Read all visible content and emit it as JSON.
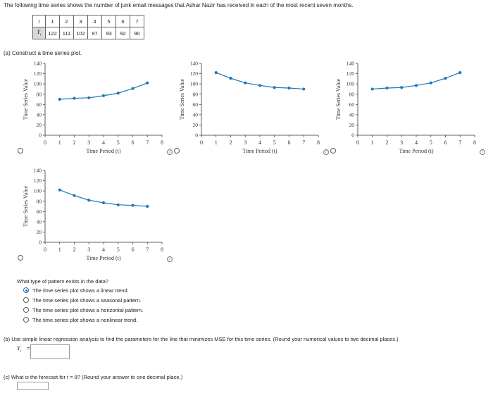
{
  "intro": "The following time series shows the number of junk email messages that Ashar Nazir has received in each of the most recent seven months.",
  "table": {
    "t_label": "t",
    "y_label": "Y",
    "y_sub": "t",
    "t": [
      "1",
      "2",
      "3",
      "4",
      "5",
      "6",
      "7"
    ],
    "y": [
      "122",
      "111",
      "102",
      "97",
      "93",
      "92",
      "90"
    ]
  },
  "part_a": {
    "prompt": "(a)  Construct a time series plot.",
    "question": "What type of pattern exists in the data?",
    "options": [
      "The time series plot shows a linear trend.",
      "The time series plot shows a seasonal pattern.",
      "The time series plot shows a horizontal pattern.",
      "The time series plot shows a nonlinear trend."
    ],
    "selected_index": 0
  },
  "part_b": {
    "prompt": "(b)  Use simple linear regression analysis to find the parameters for the line that minimizes MSE for this time series. (Round your numerical values to two decimal places.)",
    "lhs": "Y",
    "lhs_sub": "t",
    "equals": "=",
    "value": ""
  },
  "part_c": {
    "prompt": "(c)  What is the forecast for t = 8? (Round your answer to one decimal place.)",
    "value": ""
  },
  "info_symbol": "i",
  "chart_data": [
    {
      "type": "line",
      "xlabel": "Time Period (t)",
      "ylabel": "Time Series Value",
      "xlim": [
        0,
        8
      ],
      "ylim": [
        0,
        140
      ],
      "x": [
        1,
        2,
        3,
        4,
        5,
        6,
        7
      ],
      "y": [
        70,
        72,
        73,
        77,
        82,
        91,
        102
      ],
      "xticks": [
        "0",
        "1",
        "2",
        "3",
        "4",
        "5",
        "6",
        "7",
        "8"
      ],
      "yticks": [
        "0",
        "20",
        "40",
        "60",
        "80",
        "100",
        "120",
        "140"
      ]
    },
    {
      "type": "line",
      "xlabel": "Time Period (t)",
      "ylabel": "Time Series Value",
      "xlim": [
        0,
        8
      ],
      "ylim": [
        0,
        140
      ],
      "x": [
        1,
        2,
        3,
        4,
        5,
        6,
        7
      ],
      "y": [
        122,
        111,
        102,
        97,
        93,
        92,
        90
      ],
      "xticks": [
        "0",
        "1",
        "2",
        "3",
        "4",
        "5",
        "6",
        "7",
        "8"
      ],
      "yticks": [
        "0",
        "20",
        "40",
        "60",
        "80",
        "100",
        "120",
        "140"
      ]
    },
    {
      "type": "line",
      "xlabel": "Time Period (t)",
      "ylabel": "Time Series Value",
      "xlim": [
        0,
        8
      ],
      "ylim": [
        0,
        140
      ],
      "x": [
        1,
        2,
        3,
        4,
        5,
        6,
        7
      ],
      "y": [
        90,
        92,
        93,
        97,
        102,
        111,
        122
      ],
      "xticks": [
        "0",
        "1",
        "2",
        "3",
        "4",
        "5",
        "6",
        "7",
        "8"
      ],
      "yticks": [
        "0",
        "20",
        "40",
        "60",
        "80",
        "100",
        "120",
        "140"
      ]
    },
    {
      "type": "line",
      "xlabel": "Time Period (t)",
      "ylabel": "Time Series Value",
      "xlim": [
        0,
        8
      ],
      "ylim": [
        0,
        140
      ],
      "x": [
        1,
        2,
        3,
        4,
        5,
        6,
        7
      ],
      "y": [
        102,
        91,
        82,
        77,
        73,
        72,
        70
      ],
      "xticks": [
        "0",
        "1",
        "2",
        "3",
        "4",
        "5",
        "6",
        "7",
        "8"
      ],
      "yticks": [
        "0",
        "20",
        "40",
        "60",
        "80",
        "100",
        "120",
        "140"
      ]
    }
  ]
}
